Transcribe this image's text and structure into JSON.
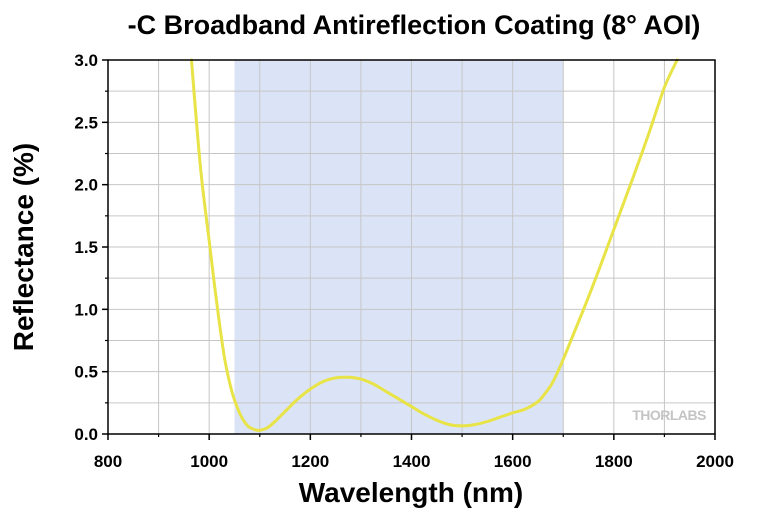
{
  "chart_data": {
    "type": "line",
    "title": "-C Broadband Antireflection Coating (8° AOI)",
    "xlabel": "Wavelength (nm)",
    "ylabel": "Reflectance (%)",
    "xlim": [
      800,
      2000
    ],
    "ylim": [
      0,
      3.0
    ],
    "xticks": [
      800,
      1000,
      1200,
      1400,
      1600,
      1800,
      2000
    ],
    "yticks": [
      0.0,
      0.5,
      1.0,
      1.5,
      2.0,
      2.5,
      3.0
    ],
    "xtick_labels": [
      "800",
      "1000",
      "1200",
      "1400",
      "1600",
      "1800",
      "2000"
    ],
    "ytick_labels": [
      "0.0",
      "0.5",
      "1.0",
      "1.5",
      "2.0",
      "2.5",
      "3.0"
    ],
    "grid": true,
    "highlight_band": {
      "x": [
        1050,
        1700
      ],
      "color": "#dbe4f6"
    },
    "line_color": "#e8e346",
    "watermark": "THORLABS",
    "series": [
      {
        "name": "",
        "x": [
          965,
          975,
          985,
          1000,
          1015,
          1030,
          1045,
          1060,
          1075,
          1090,
          1100,
          1115,
          1130,
          1150,
          1175,
          1200,
          1225,
          1250,
          1275,
          1300,
          1325,
          1350,
          1375,
          1400,
          1425,
          1450,
          1475,
          1500,
          1525,
          1550,
          1575,
          1600,
          1625,
          1650,
          1665,
          1680,
          1700,
          1720,
          1750,
          1780,
          1810,
          1840,
          1870,
          1900,
          1925
        ],
        "y": [
          3.0,
          2.5,
          2.05,
          1.55,
          1.05,
          0.62,
          0.34,
          0.17,
          0.07,
          0.035,
          0.03,
          0.05,
          0.1,
          0.18,
          0.28,
          0.36,
          0.42,
          0.45,
          0.455,
          0.44,
          0.4,
          0.34,
          0.28,
          0.22,
          0.16,
          0.11,
          0.075,
          0.065,
          0.075,
          0.1,
          0.135,
          0.17,
          0.2,
          0.26,
          0.33,
          0.42,
          0.6,
          0.8,
          1.1,
          1.42,
          1.75,
          2.08,
          2.42,
          2.78,
          3.0
        ]
      }
    ]
  }
}
